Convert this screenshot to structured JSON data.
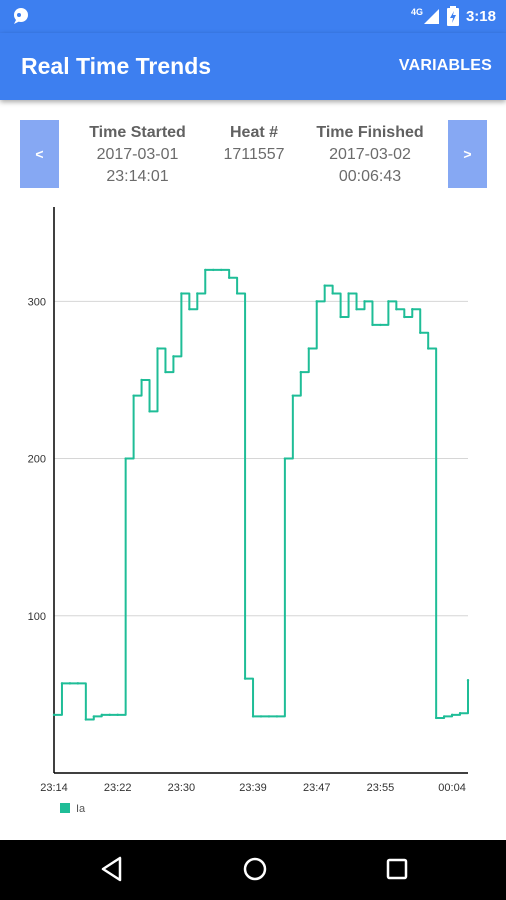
{
  "status": {
    "time": "3:18",
    "network": "4G"
  },
  "appbar": {
    "title": "Real Time Trends",
    "variables_label": "VARIABLES"
  },
  "nav": {
    "prev_label": "<",
    "next_label": ">"
  },
  "info": {
    "time_started_label": "Time Started",
    "time_started_date": "2017-03-01",
    "time_started_time": "23:14:01",
    "heat_label": "Heat #",
    "heat_value": "1711557",
    "time_finished_label": "Time Finished",
    "time_finished_date": "2017-03-02",
    "time_finished_time": "00:06:43"
  },
  "colors": {
    "accent": "#3d7ff0",
    "nav_button": "#86a8f3",
    "series": "#1fbd97"
  },
  "chart_data": {
    "type": "line",
    "xlabel": "",
    "ylabel": "",
    "x_ticks": [
      "23:14",
      "23:22",
      "23:30",
      "23:39",
      "23:47",
      "23:55",
      "00:04"
    ],
    "y_ticks": [
      100,
      200,
      300
    ],
    "ylim": [
      0,
      360
    ],
    "x_range": [
      "23:14",
      "00:06"
    ],
    "grid": "horizontal",
    "legend_position": "bottom-left",
    "series": [
      {
        "name": "Ia",
        "x": [
          "23:14",
          "23:15",
          "23:16",
          "23:17",
          "23:18",
          "23:19",
          "23:20",
          "23:21",
          "23:22",
          "23:23",
          "23:24",
          "23:25",
          "23:26",
          "23:27",
          "23:28",
          "23:29",
          "23:30",
          "23:31",
          "23:32",
          "23:33",
          "23:34",
          "23:35",
          "23:36",
          "23:37",
          "23:38",
          "23:39",
          "23:40",
          "23:41",
          "23:42",
          "23:43",
          "23:44",
          "23:45",
          "23:46",
          "23:47",
          "23:48",
          "23:49",
          "23:50",
          "23:51",
          "23:52",
          "23:53",
          "23:54",
          "23:55",
          "23:56",
          "23:57",
          "23:58",
          "23:59",
          "00:00",
          "00:01",
          "00:02",
          "00:03",
          "00:04",
          "00:05",
          "00:06"
        ],
        "values": [
          37,
          57,
          57,
          57,
          34,
          36,
          37,
          37,
          37,
          200,
          240,
          250,
          230,
          270,
          255,
          265,
          305,
          295,
          305,
          320,
          320,
          320,
          315,
          305,
          60,
          36,
          36,
          36,
          36,
          200,
          240,
          255,
          270,
          300,
          310,
          305,
          290,
          305,
          295,
          300,
          285,
          285,
          300,
          295,
          290,
          295,
          280,
          270,
          35,
          36,
          37,
          38,
          59
        ]
      }
    ]
  }
}
